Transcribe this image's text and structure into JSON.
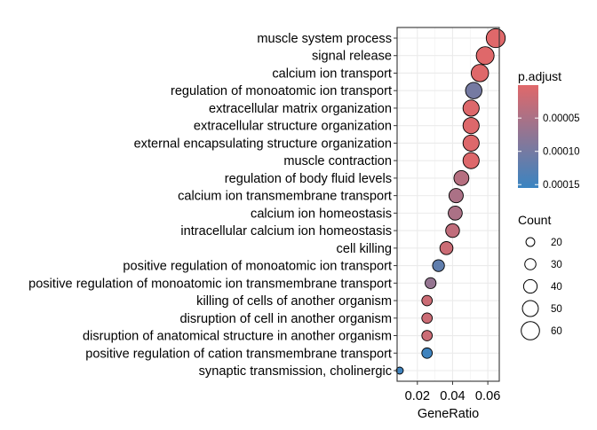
{
  "chart_data": {
    "type": "scatter",
    "xlabel": "GeneRatio",
    "xlim": [
      0.0085,
      0.0665
    ],
    "xticks": [
      0.02,
      0.04,
      0.06
    ],
    "xtick_labels": [
      "0.02",
      "0.04",
      "0.06"
    ],
    "grid": true,
    "legend_position": "right",
    "categories": [
      "muscle system process",
      "signal release",
      "calcium ion transport",
      "regulation of monoatomic ion transport",
      "extracellular matrix organization",
      "extracellular structure organization",
      "external encapsulating structure organization",
      "muscle contraction",
      "regulation of body fluid levels",
      "calcium ion transmembrane transport",
      "calcium ion homeostasis",
      "intracellular calcium ion homeostasis",
      "cell killing",
      "positive regulation of monoatomic ion transport",
      "positive regulation of monoatomic ion transmembrane transport",
      "killing of cells of another organism",
      "disruption of cell in another organism",
      "disruption of anatomical structure in another organism",
      "positive regulation of cation transmembrane transport",
      "synaptic transmission, cholinergic"
    ],
    "gene_ratio": [
      0.0645,
      0.0585,
      0.0555,
      0.052,
      0.0505,
      0.0505,
      0.0505,
      0.0505,
      0.045,
      0.042,
      0.0415,
      0.04,
      0.0365,
      0.032,
      0.0275,
      0.0255,
      0.0255,
      0.0255,
      0.0255,
      0.01
    ],
    "count": [
      63,
      58,
      56,
      52,
      51,
      51,
      51,
      51,
      46,
      43,
      42,
      41,
      38,
      33,
      29,
      27,
      27,
      27,
      27,
      13
    ],
    "p_adjust": [
      1e-06,
      1e-06,
      1e-06,
      0.0001,
      3e-06,
      3e-06,
      3e-06,
      3e-06,
      4e-05,
      5e-05,
      5e-05,
      3e-05,
      2e-05,
      0.00012,
      7e-05,
      2e-05,
      2e-05,
      2e-05,
      0.00015,
      0.00015
    ],
    "color_legend": {
      "title": "p.adjust",
      "low_color": "#e0686a",
      "high_color": "#3a84c1",
      "range": [
        5e-07,
        0.000155
      ],
      "tick_values": [
        5e-05,
        0.0001,
        0.00015
      ],
      "tick_labels": [
        "0.00005",
        "0.00010",
        "0.00015"
      ]
    },
    "size_legend": {
      "title": "Count",
      "values": [
        20,
        30,
        40,
        50,
        60
      ],
      "labels": [
        "20",
        "30",
        "40",
        "50",
        "60"
      ]
    }
  }
}
